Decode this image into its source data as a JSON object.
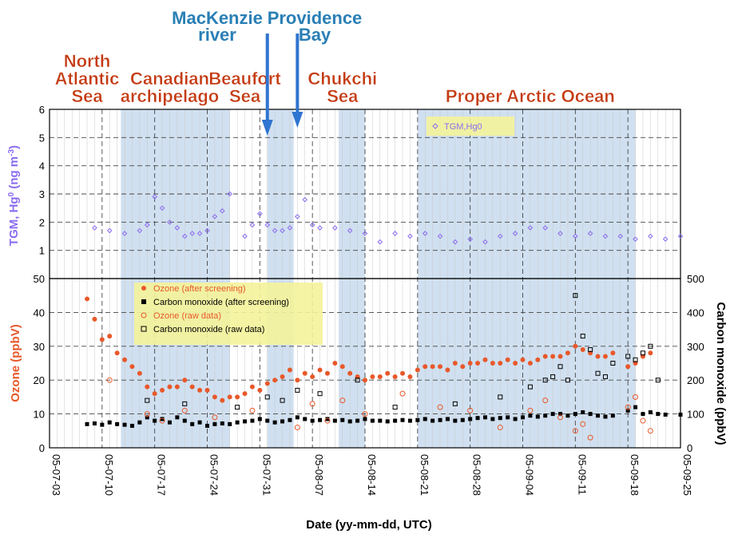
{
  "chart_data": {
    "type": "scatter",
    "xlabel": "Date (yy-mm-dd, UTC)",
    "x_tick_labels": [
      "05-07-03",
      "05-07-10",
      "05-07-17",
      "05-07-24",
      "05-07-31",
      "05-08-07",
      "05-08-14",
      "05-08-21",
      "05-08-28",
      "05-09-04",
      "05-09-11",
      "05-09-18",
      "05-09-25"
    ],
    "xlim": [
      0,
      84
    ],
    "region_labels": [
      {
        "text": "North Atlantic Sea",
        "lines": [
          "North",
          "Atlantic",
          "Sea"
        ],
        "day": 5
      },
      {
        "text": "Canadian archipelago",
        "lines": [
          "Canadian",
          "archipelago"
        ],
        "day": 16
      },
      {
        "text": "Beaufort Sea",
        "lines": [
          "Beaufort",
          "Sea"
        ],
        "day": 26
      },
      {
        "text": "Chukchi Sea",
        "lines": [
          "Chukchi",
          "Sea"
        ],
        "day": 39
      },
      {
        "text": "Proper Arctic Ocean",
        "lines": [
          "Proper Arctic Ocean"
        ],
        "day": 64
      }
    ],
    "annotations": [
      {
        "text": "MacKenzie river",
        "lines": [
          "MacKenzie",
          "river"
        ],
        "day": 29
      },
      {
        "text": "Providence Bay",
        "lines": [
          "Providence",
          "Bay"
        ],
        "day": 33
      }
    ],
    "shaded_periods": [
      [
        9.5,
        24
      ],
      [
        29,
        32.5
      ],
      [
        38.5,
        42
      ],
      [
        49,
        70
      ],
      [
        70,
        78
      ]
    ],
    "top_panel": {
      "ylabel": "TGM, Hg0 (ng m-3)",
      "ylim": [
        0,
        6
      ],
      "y_ticks": [
        "6",
        "5",
        "4",
        "3",
        "2",
        "1",
        "0"
      ],
      "legend": [
        "TGM,Hg0"
      ],
      "series": [
        {
          "name": "TGM,Hg0",
          "color": "#8a6cf0",
          "points": [
            [
              6,
              1.8
            ],
            [
              8,
              1.7
            ],
            [
              10,
              1.6
            ],
            [
              12,
              1.7
            ],
            [
              13,
              1.9
            ],
            [
              14,
              2.9
            ],
            [
              15,
              2.5
            ],
            [
              16,
              2.0
            ],
            [
              17,
              1.8
            ],
            [
              18,
              1.5
            ],
            [
              19,
              1.6
            ],
            [
              20,
              1.6
            ],
            [
              21,
              1.7
            ],
            [
              22,
              2.2
            ],
            [
              23,
              2.4
            ],
            [
              24,
              3.0
            ],
            [
              26,
              1.5
            ],
            [
              27,
              1.9
            ],
            [
              28,
              2.3
            ],
            [
              29,
              1.9
            ],
            [
              30,
              1.7
            ],
            [
              31,
              1.7
            ],
            [
              32,
              1.8
            ],
            [
              33,
              2.2
            ],
            [
              34,
              2.8
            ],
            [
              35,
              1.9
            ],
            [
              36,
              1.8
            ],
            [
              38,
              1.8
            ],
            [
              40,
              1.7
            ],
            [
              42,
              1.6
            ],
            [
              44,
              1.3
            ],
            [
              46,
              1.6
            ],
            [
              48,
              1.5
            ],
            [
              50,
              1.6
            ],
            [
              52,
              1.5
            ],
            [
              54,
              1.3
            ],
            [
              56,
              1.4
            ],
            [
              58,
              1.3
            ],
            [
              60,
              1.5
            ],
            [
              62,
              1.6
            ],
            [
              64,
              1.8
            ],
            [
              66,
              1.8
            ],
            [
              68,
              1.6
            ],
            [
              70,
              1.5
            ],
            [
              72,
              1.6
            ],
            [
              74,
              1.5
            ],
            [
              76,
              1.5
            ],
            [
              78,
              1.4
            ],
            [
              80,
              1.5
            ],
            [
              82,
              1.4
            ],
            [
              84,
              1.5
            ]
          ]
        }
      ]
    },
    "bottom_panel": {
      "ylabel_left": "Ozone (ppbV)",
      "ylabel_right": "Carbon monoxide (ppbV)",
      "ylim_left": [
        0,
        50
      ],
      "ylim_right": [
        0,
        500
      ],
      "y_ticks_left": [
        "50",
        "40",
        "30",
        "20",
        "10",
        "0"
      ],
      "y_ticks_right": [
        "500",
        "400",
        "300",
        "200",
        "100",
        "0"
      ],
      "legend": [
        "Ozone (after screening)",
        "Carbon monoxide (after screening)",
        "Ozone (raw data)",
        "Carbon monoxide (raw data)"
      ],
      "series": [
        {
          "name": "Ozone (after screening)",
          "color": "#e8582a",
          "axis": "left",
          "points": [
            [
              5,
              44
            ],
            [
              6,
              38
            ],
            [
              7,
              32
            ],
            [
              8,
              33
            ],
            [
              9,
              28
            ],
            [
              10,
              26
            ],
            [
              11,
              24
            ],
            [
              12,
              22
            ],
            [
              13,
              18
            ],
            [
              14,
              16
            ],
            [
              15,
              17
            ],
            [
              16,
              18
            ],
            [
              17,
              18
            ],
            [
              18,
              20
            ],
            [
              19,
              18
            ],
            [
              20,
              17
            ],
            [
              21,
              17
            ],
            [
              22,
              15
            ],
            [
              23,
              14
            ],
            [
              24,
              15
            ],
            [
              25,
              15
            ],
            [
              26,
              16
            ],
            [
              27,
              18
            ],
            [
              28,
              17
            ],
            [
              29,
              19
            ],
            [
              30,
              20
            ],
            [
              31,
              21
            ],
            [
              32,
              23
            ],
            [
              33,
              20
            ],
            [
              34,
              22
            ],
            [
              35,
              21
            ],
            [
              36,
              23
            ],
            [
              37,
              22
            ],
            [
              38,
              25
            ],
            [
              39,
              24
            ],
            [
              40,
              22
            ],
            [
              41,
              21
            ],
            [
              42,
              20
            ],
            [
              43,
              21
            ],
            [
              44,
              21
            ],
            [
              45,
              22
            ],
            [
              46,
              21
            ],
            [
              47,
              22
            ],
            [
              48,
              21
            ],
            [
              49,
              23
            ],
            [
              50,
              24
            ],
            [
              51,
              24
            ],
            [
              52,
              24
            ],
            [
              53,
              23
            ],
            [
              54,
              25
            ],
            [
              55,
              24
            ],
            [
              56,
              25
            ],
            [
              57,
              25
            ],
            [
              58,
              26
            ],
            [
              59,
              25
            ],
            [
              60,
              25
            ],
            [
              61,
              26
            ],
            [
              62,
              25
            ],
            [
              63,
              26
            ],
            [
              64,
              25
            ],
            [
              65,
              26
            ],
            [
              66,
              27
            ],
            [
              67,
              27
            ],
            [
              68,
              27
            ],
            [
              69,
              28
            ],
            [
              70,
              30
            ],
            [
              71,
              29
            ],
            [
              72,
              28
            ],
            [
              73,
              27
            ],
            [
              74,
              27
            ],
            [
              75,
              28
            ],
            [
              77,
              24
            ],
            [
              78,
              25
            ],
            [
              79,
              27
            ],
            [
              80,
              28
            ]
          ]
        },
        {
          "name": "Carbon monoxide (after screening)",
          "color": "#000000",
          "axis": "right",
          "points": [
            [
              5,
              70
            ],
            [
              6,
              72
            ],
            [
              7,
              68
            ],
            [
              8,
              75
            ],
            [
              9,
              70
            ],
            [
              10,
              68
            ],
            [
              11,
              65
            ],
            [
              12,
              75
            ],
            [
              13,
              90
            ],
            [
              14,
              80
            ],
            [
              15,
              85
            ],
            [
              16,
              75
            ],
            [
              17,
              90
            ],
            [
              18,
              80
            ],
            [
              19,
              70
            ],
            [
              20,
              75
            ],
            [
              21,
              65
            ],
            [
              22,
              70
            ],
            [
              23,
              72
            ],
            [
              24,
              70
            ],
            [
              25,
              75
            ],
            [
              26,
              78
            ],
            [
              27,
              80
            ],
            [
              28,
              85
            ],
            [
              29,
              80
            ],
            [
              30,
              75
            ],
            [
              31,
              78
            ],
            [
              32,
              82
            ],
            [
              33,
              90
            ],
            [
              34,
              85
            ],
            [
              35,
              80
            ],
            [
              36,
              82
            ],
            [
              37,
              85
            ],
            [
              38,
              80
            ],
            [
              39,
              82
            ],
            [
              40,
              78
            ],
            [
              41,
              80
            ],
            [
              42,
              85
            ],
            [
              43,
              80
            ],
            [
              44,
              80
            ],
            [
              45,
              78
            ],
            [
              46,
              80
            ],
            [
              47,
              82
            ],
            [
              48,
              80
            ],
            [
              49,
              82
            ],
            [
              50,
              85
            ],
            [
              51,
              80
            ],
            [
              52,
              82
            ],
            [
              53,
              85
            ],
            [
              54,
              80
            ],
            [
              55,
              82
            ],
            [
              56,
              85
            ],
            [
              57,
              88
            ],
            [
              58,
              90
            ],
            [
              59,
              85
            ],
            [
              60,
              88
            ],
            [
              61,
              90
            ],
            [
              62,
              85
            ],
            [
              63,
              90
            ],
            [
              64,
              95
            ],
            [
              65,
              92
            ],
            [
              66,
              95
            ],
            [
              67,
              100
            ],
            [
              68,
              100
            ],
            [
              69,
              95
            ],
            [
              70,
              100
            ],
            [
              71,
              105
            ],
            [
              72,
              100
            ],
            [
              73,
              95
            ],
            [
              74,
              92
            ],
            [
              75,
              95
            ],
            [
              77,
              110
            ],
            [
              78,
              120
            ],
            [
              79,
              100
            ],
            [
              80,
              105
            ],
            [
              81,
              100
            ],
            [
              82,
              98
            ],
            [
              84,
              98
            ]
          ]
        },
        {
          "name": "Ozone (raw data)",
          "color": "#e8582a",
          "axis": "left",
          "points": [
            [
              8,
              20
            ],
            [
              13,
              10
            ],
            [
              15,
              8
            ],
            [
              18,
              11
            ],
            [
              22,
              9
            ],
            [
              27,
              11
            ],
            [
              33,
              6
            ],
            [
              35,
              13
            ],
            [
              37,
              8
            ],
            [
              39,
              14
            ],
            [
              42,
              10
            ],
            [
              47,
              16
            ],
            [
              52,
              12
            ],
            [
              56,
              11
            ],
            [
              60,
              6
            ],
            [
              64,
              11
            ],
            [
              66,
              14
            ],
            [
              68,
              9
            ],
            [
              70,
              5
            ],
            [
              71,
              7
            ],
            [
              72,
              3
            ],
            [
              77,
              12
            ],
            [
              78,
              15
            ],
            [
              79,
              8
            ],
            [
              80,
              5
            ]
          ]
        },
        {
          "name": "Carbon monoxide (raw data)",
          "color": "#000000",
          "axis": "right",
          "points": [
            [
              13,
              140
            ],
            [
              18,
              130
            ],
            [
              25,
              120
            ],
            [
              29,
              150
            ],
            [
              31,
              140
            ],
            [
              33,
              170
            ],
            [
              36,
              160
            ],
            [
              41,
              200
            ],
            [
              46,
              120
            ],
            [
              54,
              130
            ],
            [
              60,
              150
            ],
            [
              64,
              180
            ],
            [
              66,
              200
            ],
            [
              67,
              210
            ],
            [
              68,
              240
            ],
            [
              69,
              200
            ],
            [
              70,
              450
            ],
            [
              71,
              330
            ],
            [
              72,
              290
            ],
            [
              73,
              220
            ],
            [
              74,
              210
            ],
            [
              75,
              250
            ],
            [
              77,
              270
            ],
            [
              78,
              260
            ],
            [
              79,
              280
            ],
            [
              80,
              300
            ],
            [
              81,
              200
            ]
          ]
        }
      ]
    }
  }
}
